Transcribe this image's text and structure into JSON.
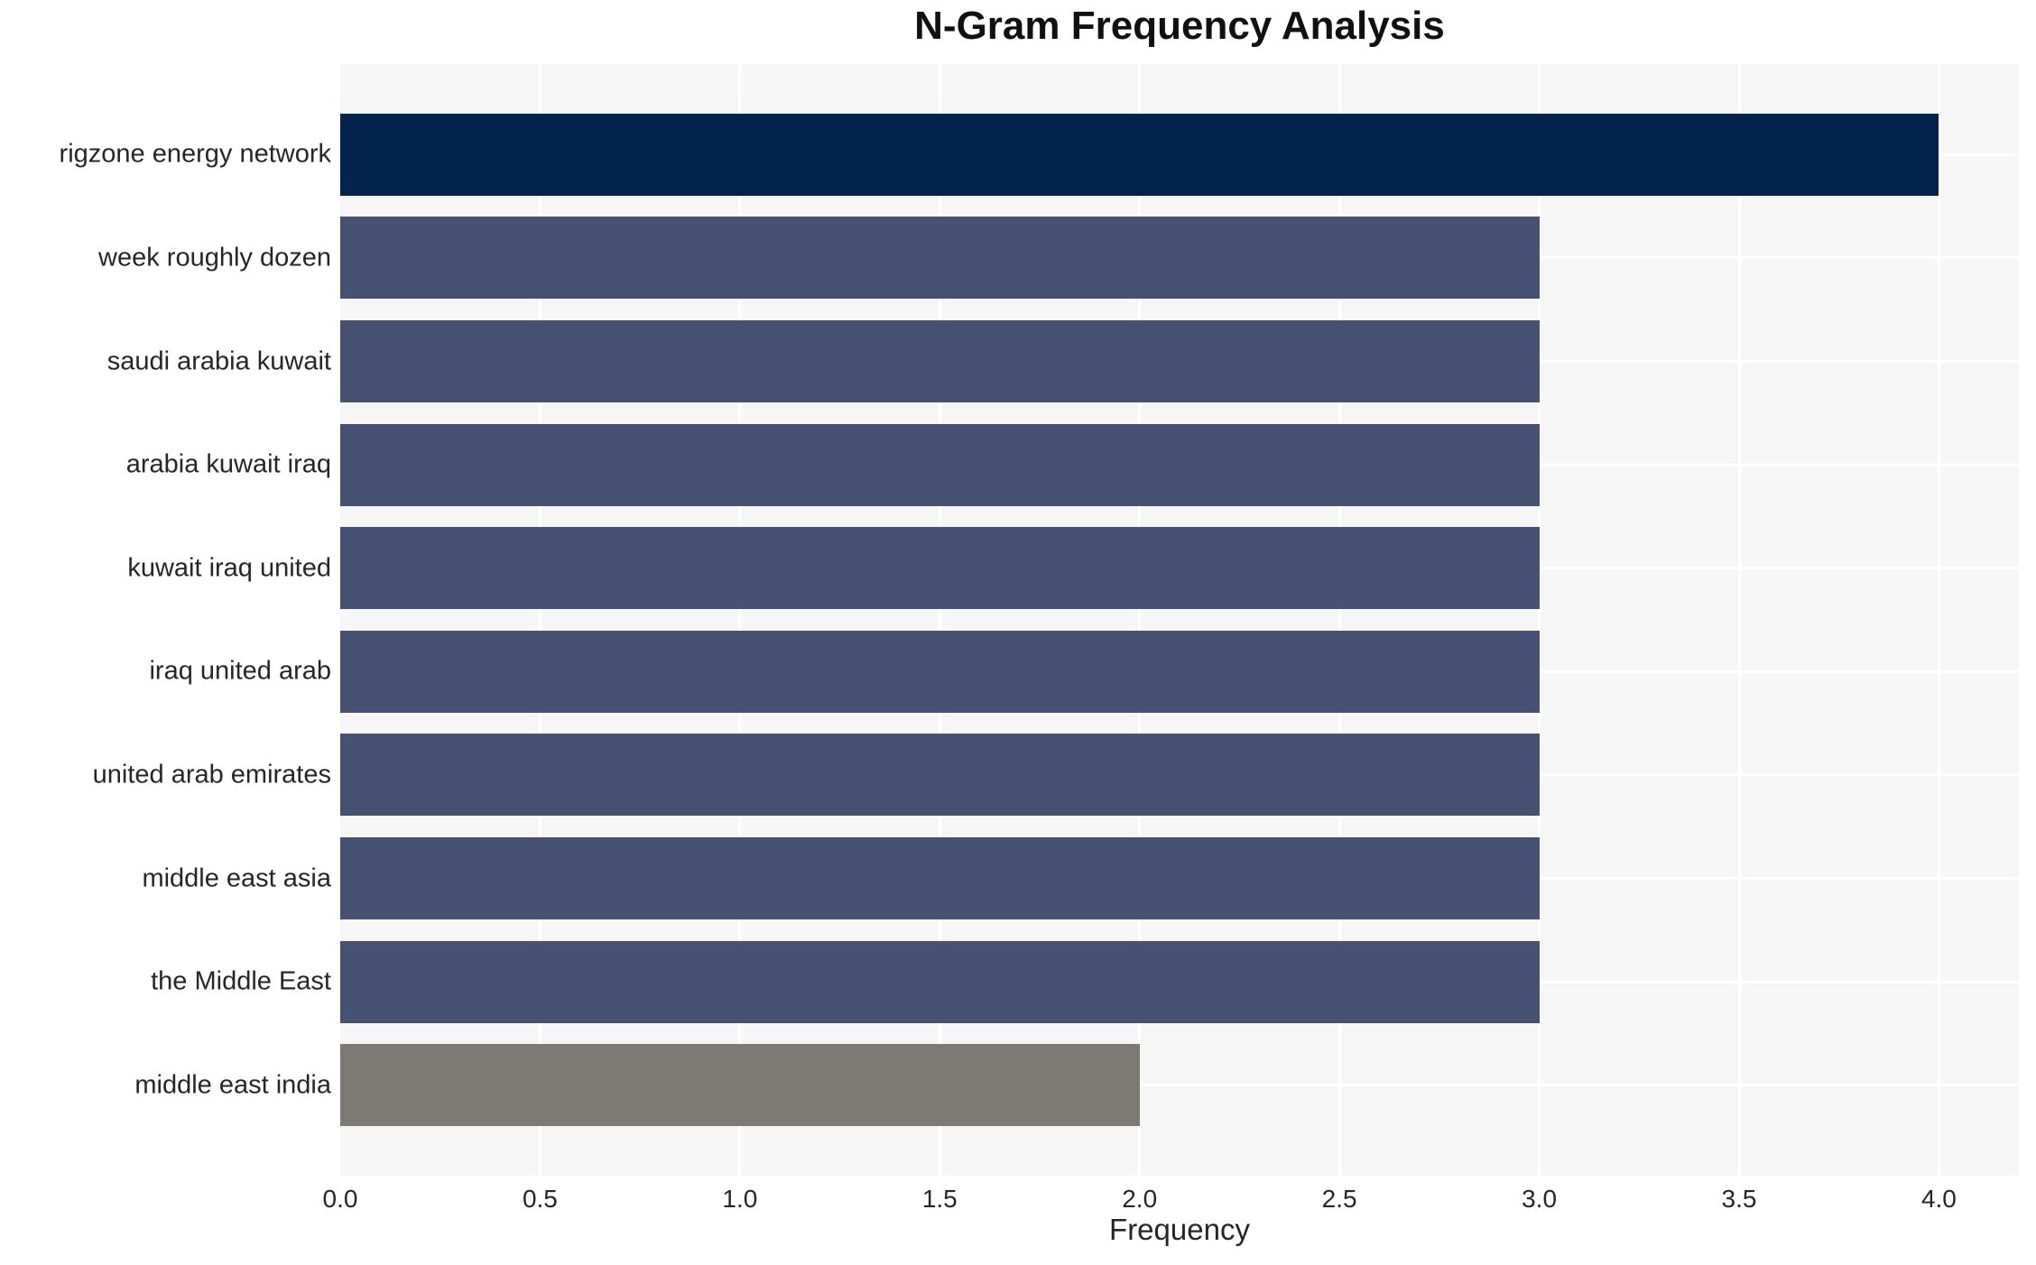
{
  "chart_data": {
    "type": "bar",
    "orientation": "horizontal",
    "title": "N-Gram Frequency Analysis",
    "xlabel": "Frequency",
    "ylabel": "",
    "categories": [
      "rigzone energy network",
      "week roughly dozen",
      "saudi arabia kuwait",
      "arabia kuwait iraq",
      "kuwait iraq united",
      "iraq united arab",
      "united arab emirates",
      "middle east asia",
      "the Middle East",
      "middle east india"
    ],
    "values": [
      4,
      3,
      3,
      3,
      3,
      3,
      3,
      3,
      3,
      2
    ],
    "bar_colors": [
      "#03234d",
      "#475172",
      "#475172",
      "#475172",
      "#475172",
      "#475172",
      "#475172",
      "#475172",
      "#475172",
      "#7b7a75"
    ],
    "xlim": [
      0,
      4.2
    ],
    "xticks": [
      0.0,
      0.5,
      1.0,
      1.5,
      2.0,
      2.5,
      3.0,
      3.5,
      4.0
    ],
    "xtick_labels": [
      "0.0",
      "0.5",
      "1.0",
      "1.5",
      "2.0",
      "2.5",
      "3.0",
      "3.5",
      "4.0"
    ],
    "grid": true,
    "legend": false,
    "plot_bg_color": "#f6f6f6",
    "grid_color": "#ffffff",
    "text_color": "#262626",
    "title_color": "#111111"
  }
}
